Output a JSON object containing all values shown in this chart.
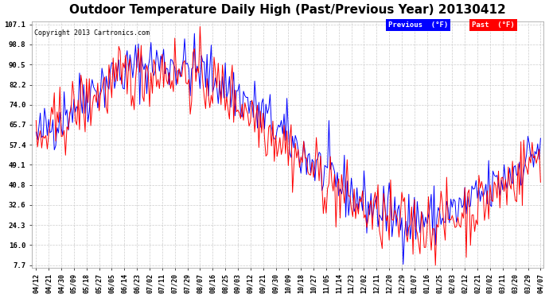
{
  "title": "Outdoor Temperature Daily High (Past/Previous Year) 20130412",
  "copyright": "Copyright 2013 Cartronics.com",
  "ylabel_values": [
    107.1,
    98.8,
    90.5,
    82.2,
    74.0,
    65.7,
    57.4,
    49.1,
    40.8,
    32.6,
    24.3,
    16.0,
    7.7
  ],
  "x_labels": [
    "04/12",
    "04/21",
    "04/30",
    "05/09",
    "05/18",
    "05/27",
    "06/05",
    "06/14",
    "06/23",
    "07/02",
    "07/11",
    "07/20",
    "07/29",
    "08/07",
    "08/16",
    "08/25",
    "09/03",
    "09/12",
    "09/21",
    "09/30",
    "10/09",
    "10/18",
    "10/27",
    "11/05",
    "11/14",
    "11/23",
    "12/02",
    "12/11",
    "12/20",
    "12/29",
    "01/07",
    "01/16",
    "01/25",
    "02/03",
    "02/12",
    "02/21",
    "03/02",
    "03/11",
    "03/20",
    "03/29",
    "04/07"
  ],
  "background_color": "#ffffff",
  "grid_color": "#cccccc",
  "previous_color": "#0000ff",
  "past_color": "#ff0000",
  "title_fontsize": 11,
  "tick_fontsize": 6.5,
  "ylim_min": 7.7,
  "ylim_max": 107.1
}
